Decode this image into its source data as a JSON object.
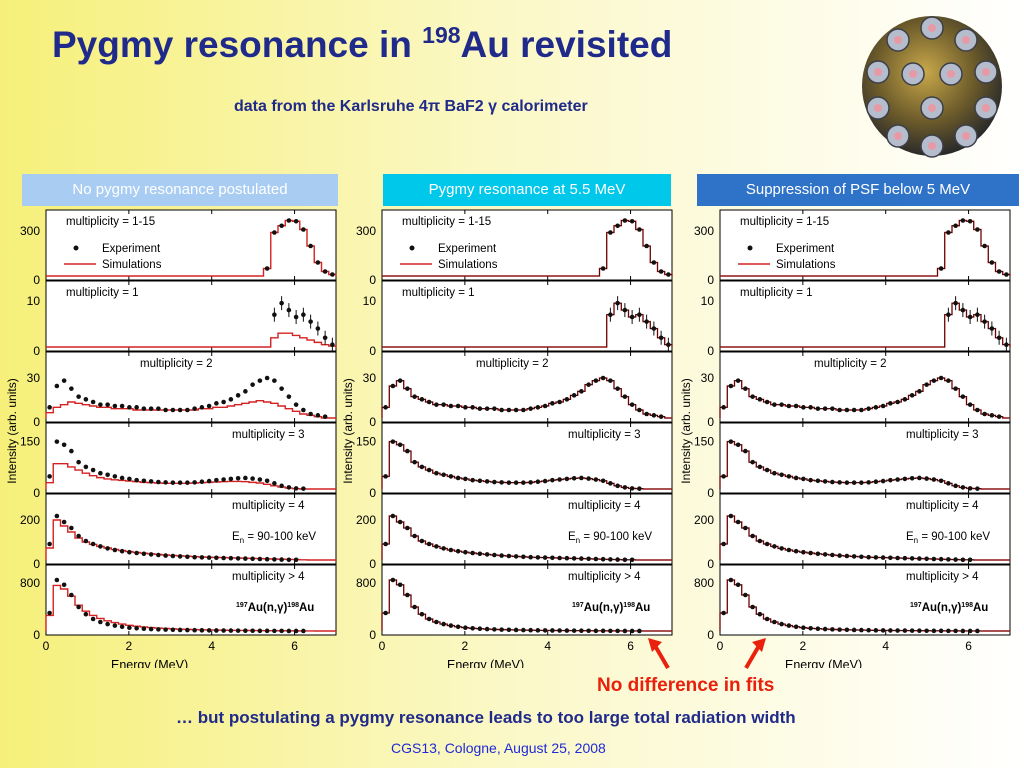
{
  "title": {
    "pre": "Pygmy resonance in ",
    "sup": "198",
    "post": "Au revisited"
  },
  "subtitle": "data from the Karlsruhe 4π BaF2 γ calorimeter",
  "panels": [
    {
      "header": "No pygmy resonance postulated",
      "header_color": "#a9cdf2",
      "fit": "bad"
    },
    {
      "header": "Pygmy resonance at 5.5 MeV",
      "header_color": "#00c8ea",
      "fit": "good"
    },
    {
      "header": "Suppression of PSF below 5 MeV",
      "header_color": "#2f73c9",
      "fit": "good"
    }
  ],
  "colors": {
    "sim": "#d42222",
    "exp": "#111111",
    "title": "#1f2a8a",
    "accent": "#e8200c"
  },
  "legend": {
    "experiment": "Experiment",
    "simulations": "Simulations"
  },
  "axis": {
    "xlabel": "Energy (MeV)",
    "ylabel": "Intensity (arb. units)",
    "xticks": [
      "0",
      "2",
      "4",
      "6"
    ]
  },
  "chart_data": {
    "type": "line",
    "x_unit": "MeV",
    "xlim": [
      0,
      7
    ],
    "xlabel": "Energy (MeV)",
    "ylabel": "Intensity (arb. units)",
    "panel_titles": [
      "No pygmy resonance postulated",
      "Pygmy resonance at 5.5 MeV",
      "Suppression of PSF below 5 MeV"
    ],
    "rows": [
      {
        "label": "multiplicity = 1-15",
        "yticks": [
          "300",
          "0"
        ],
        "ymax": 400,
        "legend": true
      },
      {
        "label": "multiplicity = 1",
        "yticks": [
          "10",
          "0"
        ],
        "ymax": 13
      },
      {
        "label": "multiplicity = 2",
        "yticks": [
          "30",
          "0"
        ],
        "ymax": 45
      },
      {
        "label": "multiplicity = 3",
        "yticks": [
          "150",
          "0"
        ],
        "ymax": 190
      },
      {
        "label": "multiplicity = 4",
        "extra": "E",
        "extra_sub": "n",
        "extra_post": " = 90-100 keV",
        "yticks": [
          "200",
          "0"
        ],
        "ymax": 300
      },
      {
        "label": "multiplicity > 4",
        "reaction": {
          "a": "197",
          "b": "Au(n,γ)",
          "c": "198",
          "d": "Au"
        },
        "yticks": [
          "800",
          "0"
        ],
        "ymax": 1000
      }
    ],
    "series_experiment": [
      [
        0,
        0,
        0,
        0,
        0,
        0,
        0,
        0,
        0,
        0,
        0,
        0,
        0,
        0,
        0,
        0,
        0,
        0,
        0,
        0,
        0,
        0,
        0,
        0,
        0,
        0,
        0,
        0,
        0,
        0,
        50,
        290,
        335,
        370,
        365,
        310,
        200,
        90,
        30,
        10
      ],
      [
        0,
        0,
        0,
        0,
        0,
        0,
        0,
        0,
        0,
        0,
        0,
        0,
        0,
        0,
        0,
        0,
        0,
        0,
        0,
        0,
        0,
        0,
        0,
        0,
        0,
        0,
        0,
        0,
        0,
        0,
        0,
        7,
        9.5,
        8,
        6.5,
        7,
        5.5,
        4,
        2,
        0.5
      ],
      [
        8,
        24,
        28,
        22,
        16,
        14,
        12,
        10,
        10,
        9,
        9,
        8,
        8,
        7,
        7,
        7,
        6,
        6,
        6,
        6,
        7,
        8,
        9,
        11,
        12,
        14,
        17,
        20,
        25,
        28,
        30,
        28,
        22,
        16,
        10,
        6,
        3,
        2,
        1,
        0
      ],
      [
        40,
        150,
        140,
        120,
        85,
        70,
        60,
        50,
        45,
        40,
        35,
        32,
        28,
        26,
        24,
        22,
        21,
        20,
        20,
        20,
        21,
        23,
        25,
        28,
        30,
        32,
        34,
        35,
        33,
        30,
        26,
        18,
        10,
        5,
        2,
        1,
        0,
        0,
        0,
        0
      ],
      [
        80,
        220,
        190,
        160,
        120,
        95,
        80,
        68,
        58,
        50,
        44,
        39,
        35,
        31,
        28,
        25,
        22,
        20,
        18,
        16,
        14,
        13,
        12,
        11,
        10,
        9,
        8,
        7,
        6,
        5,
        4,
        3,
        2,
        1,
        1,
        0,
        0,
        0,
        0,
        0
      ],
      [
        300,
        850,
        770,
        600,
        400,
        280,
        200,
        150,
        115,
        90,
        70,
        55,
        45,
        38,
        32,
        27,
        23,
        20,
        17,
        15,
        13,
        11,
        10,
        9,
        8,
        7,
        6,
        5,
        4,
        3,
        3,
        2,
        2,
        1,
        1,
        1,
        0,
        0,
        0,
        0
      ]
    ],
    "series_simulation_bad": [
      [
        0,
        0,
        0,
        0,
        0,
        0,
        0,
        0,
        0,
        0,
        0,
        0,
        0,
        0,
        0,
        0,
        0,
        0,
        0,
        0,
        0,
        0,
        0,
        0,
        0,
        0,
        0,
        0,
        0,
        0,
        50,
        290,
        335,
        370,
        365,
        310,
        200,
        90,
        30,
        10
      ],
      [
        0,
        0,
        0,
        0,
        0,
        0,
        0,
        0,
        0,
        0,
        0,
        0,
        0,
        0,
        0,
        0,
        0,
        0,
        0,
        0,
        0,
        0,
        0,
        0,
        0,
        0,
        0,
        0,
        0,
        0,
        0,
        2,
        3,
        3,
        2.5,
        2,
        1.5,
        1,
        0.5,
        0.2
      ],
      [
        4,
        8,
        10,
        12,
        11,
        10,
        9,
        8,
        8,
        7,
        7,
        7,
        6,
        6,
        6,
        6,
        6,
        6,
        6,
        6,
        6,
        7,
        7,
        8,
        8,
        9,
        10,
        11,
        12,
        13,
        12,
        11,
        9,
        7,
        5,
        3,
        2,
        1,
        0,
        0
      ],
      [
        20,
        80,
        80,
        70,
        60,
        50,
        42,
        36,
        32,
        29,
        27,
        25,
        23,
        21,
        20,
        19,
        18,
        18,
        18,
        18,
        19,
        20,
        21,
        22,
        23,
        24,
        24,
        23,
        21,
        19,
        15,
        10,
        6,
        3,
        1,
        0,
        0,
        0,
        0,
        0
      ],
      [
        60,
        200,
        170,
        140,
        110,
        90,
        78,
        68,
        60,
        53,
        47,
        42,
        38,
        34,
        31,
        28,
        25,
        23,
        21,
        19,
        17,
        15,
        14,
        13,
        12,
        11,
        10,
        9,
        8,
        7,
        6,
        5,
        4,
        3,
        2,
        1,
        0,
        0,
        0,
        0
      ],
      [
        260,
        760,
        700,
        580,
        430,
        330,
        260,
        210,
        170,
        140,
        115,
        95,
        80,
        68,
        58,
        49,
        42,
        36,
        31,
        27,
        23,
        20,
        17,
        15,
        13,
        11,
        10,
        9,
        8,
        7,
        6,
        5,
        4,
        3,
        2,
        1,
        1,
        0,
        0,
        0
      ]
    ]
  },
  "notes": {
    "no_difference": "No difference in fits",
    "conclusion": "… but postulating a pygmy resonance leads to too large total radiation width",
    "footer": "CGS13, Cologne, August 25, 2008"
  }
}
